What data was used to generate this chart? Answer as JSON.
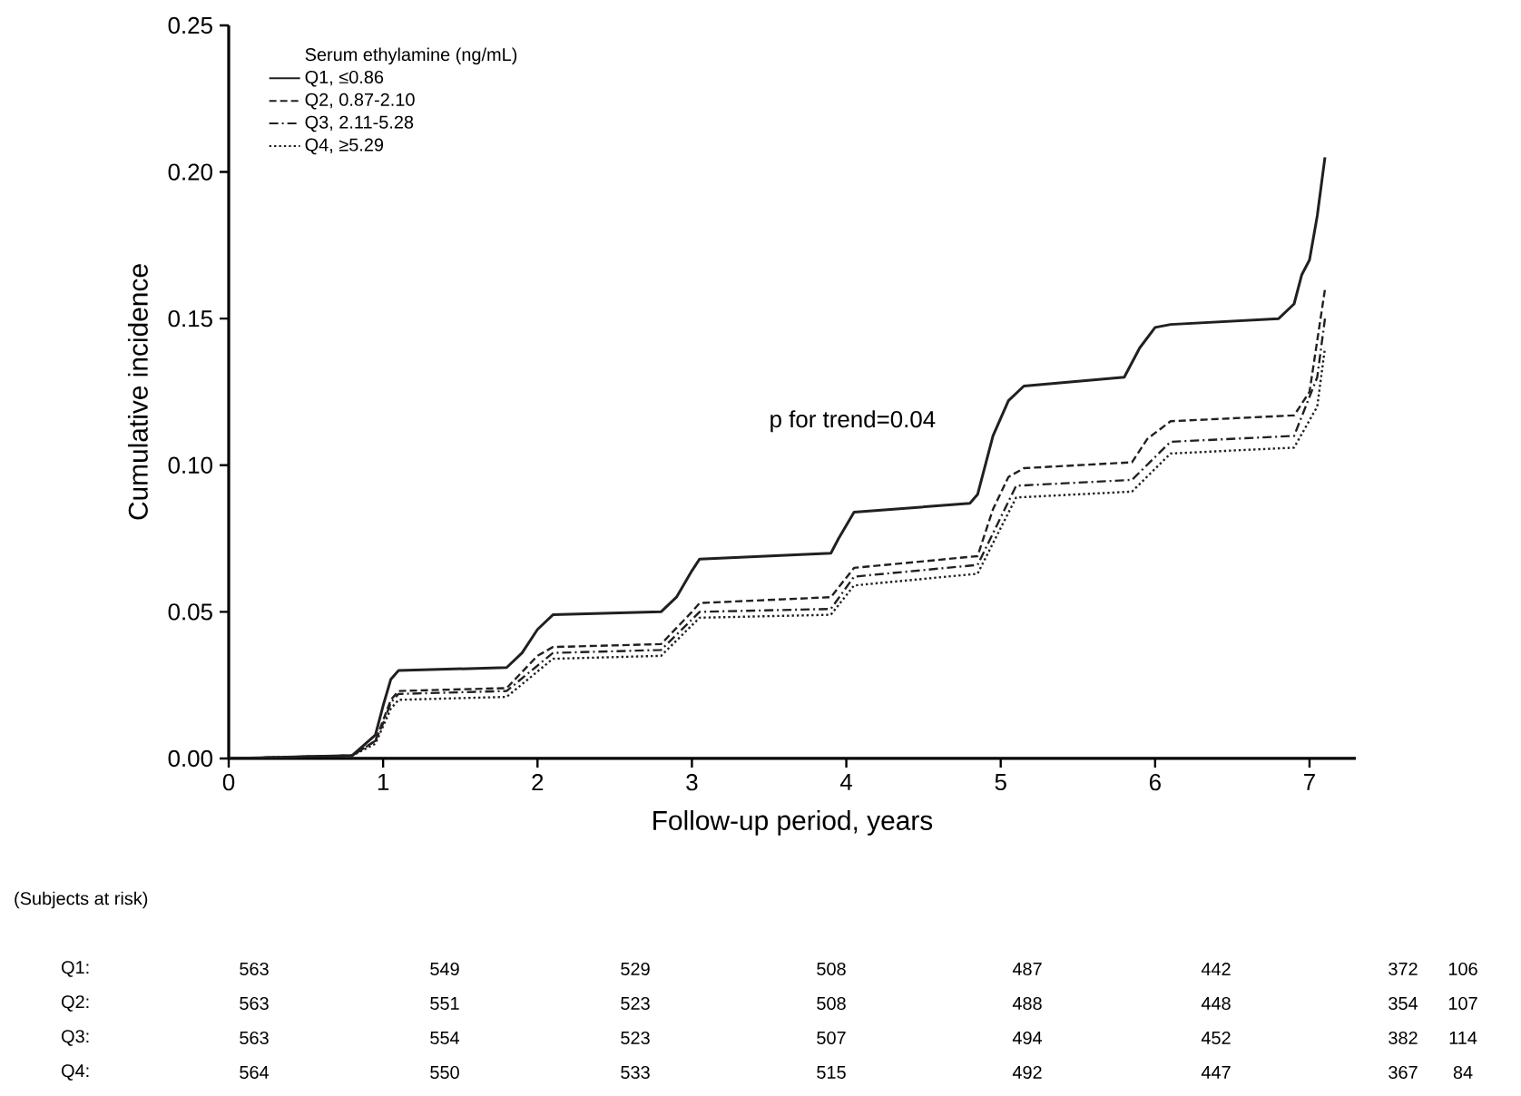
{
  "chart_data": {
    "type": "line",
    "xlabel": "Follow-up period, years",
    "ylabel": "Cumulative incidence",
    "legend_title": "Serum ethylamine (ng/mL)",
    "legend": "top left",
    "xlim": [
      0,
      7.3
    ],
    "ylim": [
      0,
      0.25
    ],
    "xticks": [
      0,
      1,
      2,
      3,
      4,
      5,
      6,
      7
    ],
    "yticks": [
      {
        "value": 0,
        "label": "0.00"
      },
      {
        "value": 0.05,
        "label": "0.05"
      },
      {
        "value": 0.1,
        "label": "0.10"
      },
      {
        "value": 0.15,
        "label": "0.15"
      },
      {
        "value": 0.2,
        "label": "0.20"
      },
      {
        "value": 0.25,
        "label": "0.25"
      }
    ],
    "series": [
      {
        "name": "Q1, ≤0.86",
        "color": "#231f20",
        "line_style": "solid",
        "x": [
          0,
          0.8,
          0.95,
          1.0,
          1.05,
          1.1,
          1.8,
          1.9,
          2.0,
          2.1,
          2.8,
          2.9,
          3.0,
          3.05,
          3.9,
          3.95,
          4.05,
          4.8,
          4.85,
          4.95,
          5.05,
          5.15,
          5.8,
          5.9,
          6.0,
          6.1,
          6.8,
          6.9,
          6.95,
          7.0,
          7.05,
          7.1
        ],
        "values": [
          0,
          0.001,
          0.008,
          0.018,
          0.027,
          0.03,
          0.031,
          0.036,
          0.044,
          0.049,
          0.05,
          0.055,
          0.064,
          0.068,
          0.07,
          0.075,
          0.084,
          0.087,
          0.09,
          0.11,
          0.122,
          0.127,
          0.13,
          0.14,
          0.147,
          0.148,
          0.15,
          0.155,
          0.165,
          0.17,
          0.185,
          0.205
        ]
      },
      {
        "name": "Q2, 0.87-2.10",
        "color": "#231f20",
        "line_style": "dashed",
        "x": [
          0,
          0.8,
          0.95,
          1.0,
          1.05,
          1.1,
          1.8,
          2.0,
          2.1,
          2.8,
          3.0,
          3.05,
          3.9,
          4.05,
          4.85,
          4.95,
          5.05,
          5.15,
          5.85,
          5.95,
          6.1,
          6.9,
          7.0,
          7.1
        ],
        "values": [
          0,
          0.001,
          0.006,
          0.013,
          0.02,
          0.023,
          0.024,
          0.035,
          0.038,
          0.039,
          0.05,
          0.053,
          0.055,
          0.065,
          0.069,
          0.085,
          0.096,
          0.099,
          0.101,
          0.109,
          0.115,
          0.117,
          0.125,
          0.16
        ]
      },
      {
        "name": "Q3, 2.11-5.28",
        "color": "#231f20",
        "line_style": "dashdot",
        "x": [
          0,
          0.8,
          0.95,
          1.0,
          1.05,
          1.1,
          1.8,
          2.1,
          2.8,
          3.05,
          3.9,
          4.05,
          4.85,
          5.1,
          5.85,
          6.1,
          6.9,
          7.05,
          7.1
        ],
        "values": [
          0,
          0.001,
          0.006,
          0.012,
          0.019,
          0.022,
          0.023,
          0.036,
          0.037,
          0.05,
          0.051,
          0.062,
          0.066,
          0.093,
          0.095,
          0.108,
          0.11,
          0.13,
          0.15
        ]
      },
      {
        "name": "Q4, ≥5.29",
        "color": "#231f20",
        "line_style": "dotted",
        "x": [
          0,
          0.8,
          0.95,
          1.0,
          1.05,
          1.1,
          1.8,
          2.1,
          2.8,
          3.05,
          3.9,
          4.05,
          4.85,
          5.1,
          5.85,
          6.1,
          6.9,
          7.05,
          7.1
        ],
        "values": [
          0,
          0.001,
          0.005,
          0.011,
          0.017,
          0.02,
          0.021,
          0.034,
          0.035,
          0.048,
          0.049,
          0.059,
          0.063,
          0.089,
          0.091,
          0.104,
          0.106,
          0.12,
          0.14
        ]
      }
    ],
    "annotations": [
      "p for trend=0.04",
      "(Subjects at risk)",
      "Q1:",
      "563",
      "549",
      "529",
      "508",
      "487",
      "442",
      "372",
      "106",
      "Q2:",
      "563",
      "551",
      "523",
      "508",
      "488",
      "448",
      "354",
      "107",
      "Q3:",
      "563",
      "554",
      "523",
      "507",
      "494",
      "452",
      "382",
      "114",
      "Q4:",
      "564",
      "550",
      "533",
      "515",
      "492",
      "447",
      "367",
      "84"
    ]
  }
}
